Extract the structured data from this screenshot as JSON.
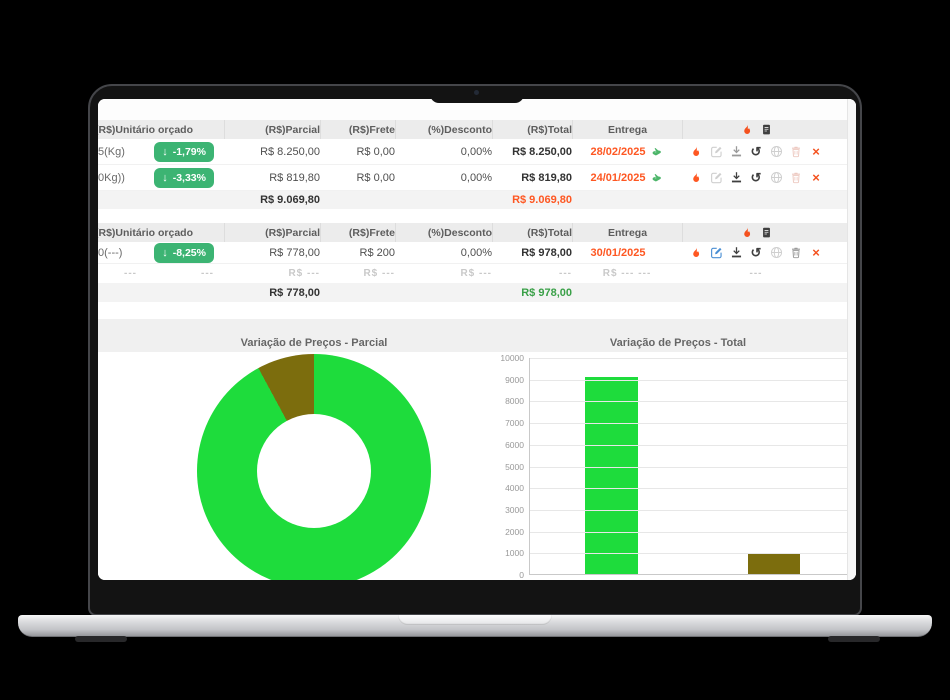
{
  "colors": {
    "badge_green": "#3cb473",
    "chart_green": "#1edc3c",
    "chart_olive": "#7c6d0d",
    "orange": "#fe5722",
    "total_green": "#3aa048",
    "edit_blue": "#4a8fd4",
    "icon_light": "#cfcfcf",
    "icon_mid": "#9a9a9a",
    "icon_dark": "#3f3f3f",
    "trash_pink": "#edc9c1",
    "red_x": "#f4511e",
    "hand_green": "#4db56a"
  },
  "icons": {
    "arrow_down_glyph": "↓",
    "history_glyph": "↺",
    "close_glyph": "×"
  },
  "headers": {
    "unitario": "(R$)Unitário orçado",
    "parcial": "(R$)Parcial",
    "frete": "(R$)Frete",
    "desconto": "(%)Desconto",
    "total": "(R$)Total",
    "entrega": "Entrega"
  },
  "header_actions": [
    {
      "icon": "flame",
      "tone": "red",
      "name": "flame-icon"
    },
    {
      "icon": "doc",
      "tone": "dark",
      "name": "invoice-icon"
    }
  ],
  "table1": {
    "rows": [
      {
        "label": "5(Kg)",
        "variation": "-1,79%",
        "parcial": "R$ 8.250,00",
        "frete": "R$ 0,00",
        "desconto": "0,00%",
        "total": "R$ 8.250,00",
        "entrega": "28/02/2025",
        "actions": [
          {
            "icon": "flame",
            "tone": "flame",
            "name": "flame-icon"
          },
          {
            "icon": "edit",
            "tone": "light",
            "name": "edit-icon"
          },
          {
            "icon": "download",
            "tone": "mid",
            "name": "download-icon"
          },
          {
            "icon": "history",
            "tone": "dark",
            "name": "history-icon"
          },
          {
            "icon": "globe",
            "tone": "light",
            "name": "globe-icon"
          },
          {
            "icon": "trash",
            "tone": "pink",
            "name": "trash-icon"
          },
          {
            "icon": "close",
            "tone": "red",
            "name": "close-x-icon"
          }
        ]
      },
      {
        "label": "0Kg))",
        "variation": "-3,33%",
        "parcial": "R$ 819,80",
        "frete": "R$ 0,00",
        "desconto": "0,00%",
        "total": "R$ 819,80",
        "entrega": "24/01/2025",
        "actions": [
          {
            "icon": "flame",
            "tone": "flame",
            "name": "flame-icon"
          },
          {
            "icon": "edit",
            "tone": "light",
            "name": "edit-icon"
          },
          {
            "icon": "download",
            "tone": "dark",
            "name": "download-icon"
          },
          {
            "icon": "history",
            "tone": "dark",
            "name": "history-icon"
          },
          {
            "icon": "globe",
            "tone": "light",
            "name": "globe-icon"
          },
          {
            "icon": "trash",
            "tone": "pink",
            "name": "trash-icon"
          },
          {
            "icon": "close",
            "tone": "red",
            "name": "close-x-icon"
          }
        ]
      }
    ],
    "total_parcial": "R$ 9.069,80",
    "total_total": "R$ 9.069,80"
  },
  "table2": {
    "rows": [
      {
        "label": "0(---)",
        "variation": "-8,25%",
        "parcial": "R$ 778,00",
        "frete": "R$ 200",
        "desconto": "0,00%",
        "total": "R$ 978,00",
        "entrega": "30/01/2025",
        "actions": [
          {
            "icon": "flame",
            "tone": "flame",
            "name": "flame-icon"
          },
          {
            "icon": "edit",
            "tone": "blue",
            "name": "edit-icon"
          },
          {
            "icon": "download",
            "tone": "dark",
            "name": "download-icon"
          },
          {
            "icon": "history",
            "tone": "dark",
            "name": "history-icon"
          },
          {
            "icon": "globe",
            "tone": "light",
            "name": "globe-icon"
          },
          {
            "icon": "trash",
            "tone": "mid",
            "name": "trash-icon"
          },
          {
            "icon": "close",
            "tone": "red",
            "name": "close-x-icon"
          }
        ]
      }
    ],
    "placeholder": {
      "label": "---",
      "variation": "---",
      "parcial": "R$ ---",
      "frete": "R$ ---",
      "desconto": "R$ ---",
      "total": "---",
      "entrega": "R$ ---",
      "winner": "---",
      "actions_dash": "---"
    },
    "total_parcial": "R$ 778,00",
    "total_total": "R$ 978,00"
  },
  "charts": {
    "parcial_title": "Variação de Preços - Parcial",
    "total_title": "Variação de Preços - Total"
  },
  "chart_data": [
    {
      "type": "pie",
      "subtype": "donut",
      "title": "Variação de Preços - Parcial",
      "series": [
        {
          "name": "supplier-green",
          "value": 9069.8,
          "color": "#1edc3c"
        },
        {
          "name": "supplier-olive",
          "value": 778.0,
          "color": "#7c6d0d"
        }
      ],
      "legend": false
    },
    {
      "type": "bar",
      "title": "Variação de Preços - Total",
      "categories": [
        "supplier-green",
        "supplier-olive"
      ],
      "values": [
        9069.8,
        978.0
      ],
      "colors": [
        "#1edc3c",
        "#7c6d0d"
      ],
      "ylim": [
        0,
        10000
      ],
      "yticks": [
        0,
        1000,
        2000,
        3000,
        4000,
        5000,
        6000,
        7000,
        8000,
        9000,
        10000
      ],
      "grid": true,
      "legend_position": "none",
      "xlabel": "",
      "ylabel": ""
    }
  ]
}
